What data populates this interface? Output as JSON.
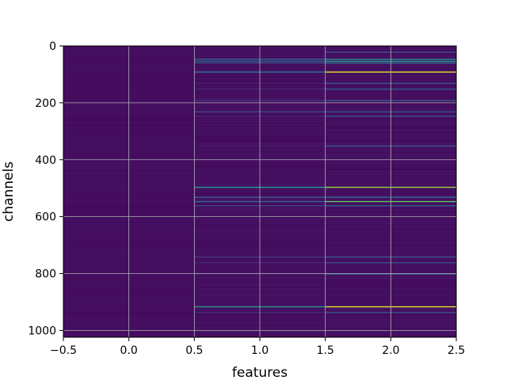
{
  "chart_data": {
    "type": "heatmap",
    "title": "",
    "xlabel": "features",
    "ylabel": "channels",
    "xlim": [
      -0.5,
      2.5
    ],
    "ylim": [
      1024,
      0
    ],
    "y_inverted": true,
    "grid": true,
    "colormap": "viridis",
    "x_ticks": [
      -0.5,
      0.0,
      0.5,
      1.0,
      1.5,
      2.0,
      2.5
    ],
    "x_tick_labels": [
      "−0.5",
      "0.0",
      "0.5",
      "1.0",
      "1.5",
      "2.0",
      "2.5"
    ],
    "y_ticks": [
      0,
      200,
      400,
      600,
      800,
      1000
    ],
    "y_tick_labels": [
      "0",
      "200",
      "400",
      "600",
      "800",
      "1000"
    ],
    "n_channels": 1024,
    "columns": [
      0,
      1,
      2
    ],
    "background_value": 0.03,
    "highlighted_rows": [
      {
        "channel": 20,
        "values": [
          0.03,
          0.05,
          0.25
        ]
      },
      {
        "channel": 45,
        "values": [
          0.03,
          0.35,
          0.45
        ]
      },
      {
        "channel": 52,
        "values": [
          0.04,
          0.3,
          0.55
        ]
      },
      {
        "channel": 58,
        "values": [
          0.03,
          0.25,
          0.4
        ]
      },
      {
        "channel": 90,
        "values": [
          0.04,
          0.4,
          0.95
        ]
      },
      {
        "channel": 130,
        "values": [
          0.03,
          0.08,
          0.25
        ]
      },
      {
        "channel": 150,
        "values": [
          0.03,
          0.1,
          0.3
        ]
      },
      {
        "channel": 190,
        "values": [
          0.03,
          0.15,
          0.3
        ]
      },
      {
        "channel": 230,
        "values": [
          0.04,
          0.22,
          0.3
        ]
      },
      {
        "channel": 245,
        "values": [
          0.03,
          0.1,
          0.25
        ]
      },
      {
        "channel": 350,
        "values": [
          0.03,
          0.08,
          0.28
        ]
      },
      {
        "channel": 495,
        "values": [
          0.05,
          0.55,
          0.85
        ]
      },
      {
        "channel": 530,
        "values": [
          0.03,
          0.28,
          0.35
        ]
      },
      {
        "channel": 545,
        "values": [
          0.04,
          0.35,
          0.75
        ]
      },
      {
        "channel": 560,
        "values": [
          0.03,
          0.22,
          0.35
        ]
      },
      {
        "channel": 740,
        "values": [
          0.03,
          0.15,
          0.28
        ]
      },
      {
        "channel": 760,
        "values": [
          0.03,
          0.1,
          0.25
        ]
      },
      {
        "channel": 800,
        "values": [
          0.03,
          0.08,
          0.3
        ]
      },
      {
        "channel": 915,
        "values": [
          0.04,
          0.55,
          0.95
        ]
      },
      {
        "channel": 935,
        "values": [
          0.03,
          0.12,
          0.25
        ]
      },
      {
        "channel": 1000,
        "values": [
          0.05,
          0.05,
          0.05
        ]
      }
    ]
  }
}
